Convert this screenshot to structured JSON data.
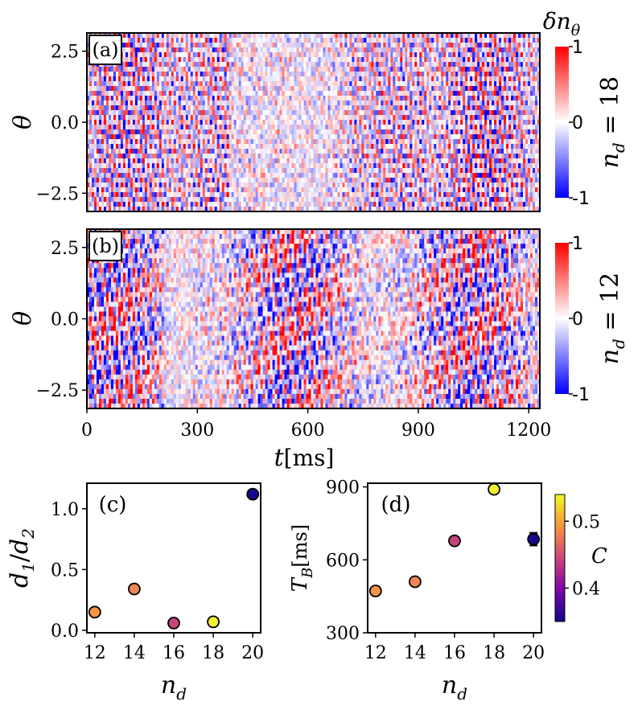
{
  "chart_data": [
    {
      "id": "a",
      "type": "heatmap",
      "panel_label": "(a)",
      "ylabel": "θ",
      "xlim": [
        0,
        1230
      ],
      "ylim": [
        -3.14159,
        3.14159
      ],
      "yticks": [
        2.5,
        0.0,
        -2.5
      ],
      "ytick_labels": [
        "2.5",
        "0.0",
        "−2.5"
      ],
      "colorbar": {
        "title": "δn",
        "title_sub": "θ",
        "min": -1,
        "max": 1,
        "tick_labels": [
          "1",
          "0",
          "-1"
        ],
        "cmap": "bwr"
      },
      "right_label": {
        "main": "n",
        "sub": "d",
        "rest": " = 18"
      }
    },
    {
      "id": "b",
      "type": "heatmap",
      "panel_label": "(b)",
      "ylabel": "θ",
      "xlabel": {
        "var": "t",
        "unit": "[ms]"
      },
      "xlim": [
        0,
        1230
      ],
      "ylim": [
        -3.14159,
        3.14159
      ],
      "xticks": [
        0,
        300,
        600,
        900,
        1200
      ],
      "xtick_labels": [
        "0",
        "300",
        "600",
        "900",
        "1200"
      ],
      "yticks": [
        2.5,
        0.0,
        -2.5
      ],
      "ytick_labels": [
        "2.5",
        "0.0",
        "−2.5"
      ],
      "colorbar": {
        "min": -1,
        "max": 1,
        "tick_labels": [
          "1",
          "0",
          "-1"
        ],
        "cmap": "bwr"
      },
      "right_label": {
        "main": "n",
        "sub": "d",
        "rest": " = 12"
      }
    },
    {
      "id": "c",
      "type": "scatter",
      "panel_label": "(c)",
      "x": [
        12,
        14,
        16,
        18,
        20
      ],
      "y": [
        0.15,
        0.34,
        0.06,
        0.07,
        1.12
      ],
      "colors": [
        "#f69546",
        "#f08457",
        "#c8437b",
        "#f5f031",
        "#16078f"
      ],
      "xlim": [
        11.6,
        20.4
      ],
      "ylim": [
        -0.02,
        1.21
      ],
      "xticks": [
        12,
        14,
        16,
        18,
        20
      ],
      "xtick_labels": [
        "12",
        "14",
        "16",
        "18",
        "20"
      ],
      "yticks": [
        0.0,
        0.5,
        1.0
      ],
      "ytick_labels": [
        "0.0",
        "0.5",
        "1.0"
      ],
      "xlabel": {
        "main": "n",
        "sub": "d"
      },
      "ylabel": {
        "a": "d",
        "a_sub": "1",
        "sep": "/",
        "b": "d",
        "b_sub": "2"
      }
    },
    {
      "id": "d",
      "type": "scatter",
      "panel_label": "(d)",
      "x": [
        12,
        14,
        16,
        18,
        20
      ],
      "y": [
        472,
        510,
        678,
        890,
        685
      ],
      "yerr": [
        14,
        14,
        14,
        12,
        26
      ],
      "colors": [
        "#f69546",
        "#f08457",
        "#c8437b",
        "#f5f031",
        "#16078f"
      ],
      "xlim": [
        11.6,
        20.4
      ],
      "ylim": [
        300,
        915
      ],
      "xticks": [
        12,
        14,
        16,
        18,
        20
      ],
      "xtick_labels": [
        "12",
        "14",
        "16",
        "18",
        "20"
      ],
      "yticks": [
        300,
        600,
        900
      ],
      "ytick_labels": [
        "300",
        "600",
        "900"
      ],
      "xlabel": {
        "main": "n",
        "sub": "d"
      },
      "ylabel": {
        "main": "T",
        "sub": "B",
        "unit": "[ms]"
      },
      "colorbar": {
        "title": "C",
        "min": 0.35,
        "max": 0.54,
        "ticks": [
          0.4,
          0.5
        ],
        "tick_labels": [
          "0.4",
          "0.5"
        ],
        "cmap": "plasma"
      }
    }
  ]
}
